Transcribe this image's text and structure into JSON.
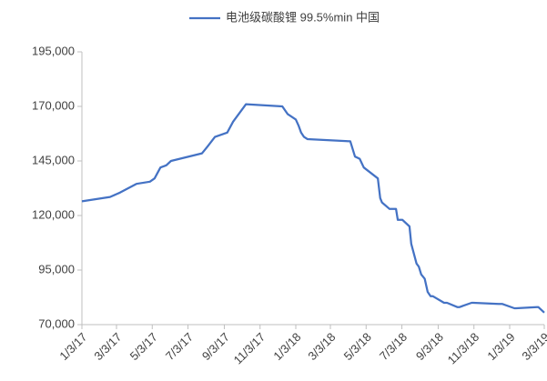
{
  "chart_data": {
    "type": "line",
    "series": [
      {
        "name": "电池级碳酸锂 99.5%min 中国",
        "color": "#4472c4",
        "x": [
          "1/3/17",
          "2/20/17",
          "3/9/17",
          "3/23/17",
          "4/6/17",
          "4/29/17",
          "5/7/17",
          "5/17/17",
          "5/27/17",
          "6/4/17",
          "7/27/17",
          "8/5/17",
          "8/18/17",
          "9/8/17",
          "9/18/17",
          "10/10/17",
          "12/11/17",
          "12/20/17",
          "1/3/18",
          "1/8/18",
          "1/12/18",
          "1/17/18",
          "1/23/18",
          "4/6/18",
          "4/14/18",
          "4/22/18",
          "4/29/18",
          "5/23/18",
          "5/27/18",
          "5/30/18",
          "6/12/18",
          "6/23/18",
          "6/26/18",
          "7/4/18",
          "7/16/18",
          "7/19/18",
          "7/24/18",
          "7/28/18",
          "8/1/18",
          "8/5/18",
          "8/11/18",
          "8/16/18",
          "8/21/18",
          "8/25/18",
          "9/13/18",
          "9/18/18",
          "10/6/18",
          "10/9/18",
          "10/30/18",
          "11/2/18",
          "12/15/18",
          "12/21/18",
          "1/11/19",
          "1/14/19",
          "2/18/19",
          "2/21/19",
          "3/1/19",
          "3/3/19"
        ],
        "values": [
          126500,
          128500,
          130500,
          132500,
          134500,
          135500,
          137000,
          142000,
          143000,
          145000,
          148500,
          151500,
          156000,
          158000,
          163000,
          171000,
          170000,
          166500,
          164000,
          161000,
          158000,
          156000,
          155000,
          154000,
          147000,
          146000,
          142000,
          137000,
          128000,
          126000,
          123000,
          123000,
          118000,
          118000,
          115000,
          107000,
          102000,
          98000,
          96500,
          93000,
          91000,
          85000,
          83000,
          83000,
          80000,
          80000,
          78000,
          78000,
          80000,
          80000,
          79500,
          79500,
          77500,
          77500,
          78000,
          78000,
          76000,
          75500
        ]
      }
    ],
    "xlim": [
      "1/3/17",
      "3/3/19"
    ],
    "xticks": [
      "1/3/17",
      "3/3/17",
      "5/3/17",
      "7/3/17",
      "9/3/17",
      "11/3/17",
      "1/3/18",
      "3/3/18",
      "5/3/18",
      "7/3/18",
      "9/3/18",
      "11/3/18",
      "1/3/19",
      "3/3/19"
    ],
    "ylim": [
      70000,
      195000
    ],
    "yticks": [
      {
        "value": 70000,
        "label": "70,000"
      },
      {
        "value": 95000,
        "label": "95,000"
      },
      {
        "value": 120000,
        "label": "120,000"
      },
      {
        "value": 145000,
        "label": "145,000"
      },
      {
        "value": 170000,
        "label": "170,000"
      },
      {
        "value": 195000,
        "label": "195,000"
      }
    ],
    "grid": false,
    "legend": "top"
  }
}
